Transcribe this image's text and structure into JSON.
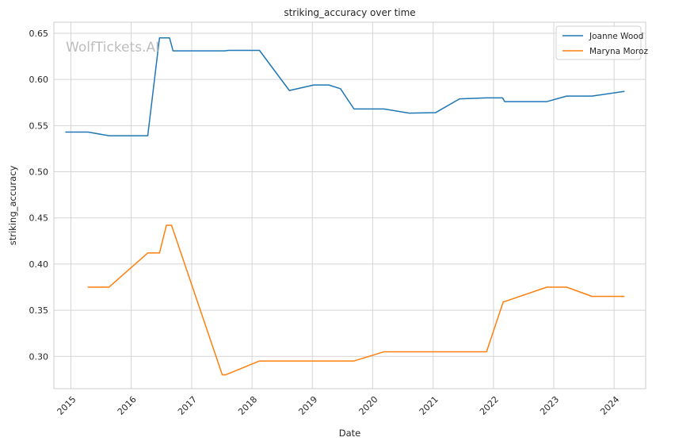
{
  "chart_data": {
    "type": "line",
    "title": "striking_accuracy over time",
    "xlabel": "Date",
    "ylabel": "striking_accuracy",
    "watermark": "WolfTickets.AI",
    "grid": true,
    "legend_position": "top-right",
    "xlim": [
      "2014-09-20",
      "2024-07-10"
    ],
    "ylim": [
      0.265,
      0.662
    ],
    "x_ticks": [
      "2015",
      "2016",
      "2017",
      "2018",
      "2019",
      "2020",
      "2021",
      "2022",
      "2023",
      "2024"
    ],
    "y_ticks": [
      "0.30",
      "0.35",
      "0.40",
      "0.45",
      "0.50",
      "0.55",
      "0.60",
      "0.65"
    ],
    "series": [
      {
        "name": "Joanne Wood",
        "color": "#1f77b4",
        "points": [
          [
            "2014-12-01",
            0.543
          ],
          [
            "2015-04-15",
            0.543
          ],
          [
            "2015-08-20",
            0.539
          ],
          [
            "2016-04-10",
            0.539
          ],
          [
            "2016-06-20",
            0.645
          ],
          [
            "2016-08-20",
            0.645
          ],
          [
            "2016-09-10",
            0.631
          ],
          [
            "2017-07-20",
            0.631
          ],
          [
            "2017-08-10",
            0.6315
          ],
          [
            "2018-02-15",
            0.6315
          ],
          [
            "2018-08-15",
            0.588
          ],
          [
            "2019-01-10",
            0.594
          ],
          [
            "2019-04-10",
            0.594
          ],
          [
            "2019-06-20",
            0.59
          ],
          [
            "2019-09-10",
            0.568
          ],
          [
            "2020-03-10",
            0.568
          ],
          [
            "2020-08-10",
            0.5635
          ],
          [
            "2021-01-15",
            0.564
          ],
          [
            "2021-06-10",
            0.579
          ],
          [
            "2021-11-20",
            0.58
          ],
          [
            "2022-02-25",
            0.58
          ],
          [
            "2022-03-10",
            0.576
          ],
          [
            "2022-11-20",
            0.576
          ],
          [
            "2023-03-20",
            0.582
          ],
          [
            "2023-08-20",
            0.582
          ],
          [
            "2024-03-01",
            0.587
          ]
        ]
      },
      {
        "name": "Maryna Moroz",
        "color": "#ff7f0e",
        "points": [
          [
            "2015-04-15",
            0.375
          ],
          [
            "2015-08-20",
            0.375
          ],
          [
            "2016-04-10",
            0.412
          ],
          [
            "2016-06-20",
            0.412
          ],
          [
            "2016-08-01",
            0.442
          ],
          [
            "2016-09-01",
            0.442
          ],
          [
            "2017-07-05",
            0.28
          ],
          [
            "2017-07-25",
            0.28
          ],
          [
            "2018-02-15",
            0.295
          ],
          [
            "2019-09-10",
            0.295
          ],
          [
            "2020-03-10",
            0.305
          ],
          [
            "2021-11-20",
            0.305
          ],
          [
            "2022-03-01",
            0.359
          ],
          [
            "2022-03-20",
            0.36
          ],
          [
            "2022-11-20",
            0.375
          ],
          [
            "2023-03-20",
            0.375
          ],
          [
            "2023-08-20",
            0.365
          ],
          [
            "2024-03-01",
            0.365
          ]
        ]
      }
    ]
  }
}
